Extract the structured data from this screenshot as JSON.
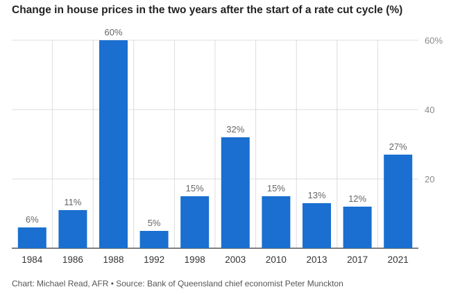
{
  "title": "Change in house prices in the two years after the start of a rate cut cycle (%)",
  "footer": "Chart: Michael Read, AFR • Source: Bank of Queensland chief economist Peter Munckton",
  "colors": {
    "bar": "#1a6fd0",
    "grid": "#dcdcdc",
    "axis": "#333333"
  },
  "chart_data": {
    "type": "bar",
    "title": "Change in house prices in the two years after the start of a rate cut cycle (%)",
    "categories": [
      "1984",
      "1986",
      "1988",
      "1992",
      "1998",
      "2003",
      "2010",
      "2013",
      "2017",
      "2021"
    ],
    "values": [
      6,
      11,
      60,
      5,
      15,
      32,
      15,
      13,
      12,
      27
    ],
    "data_labels": [
      "6%",
      "11%",
      "60%",
      "5%",
      "15%",
      "32%",
      "15%",
      "13%",
      "12%",
      "27%"
    ],
    "y_ticks": [
      20,
      40,
      60
    ],
    "y_tick_labels": [
      "20",
      "40",
      "60%"
    ],
    "ylim": [
      0,
      60
    ],
    "y_axis_position": "right",
    "grid": true,
    "legend": "none"
  }
}
